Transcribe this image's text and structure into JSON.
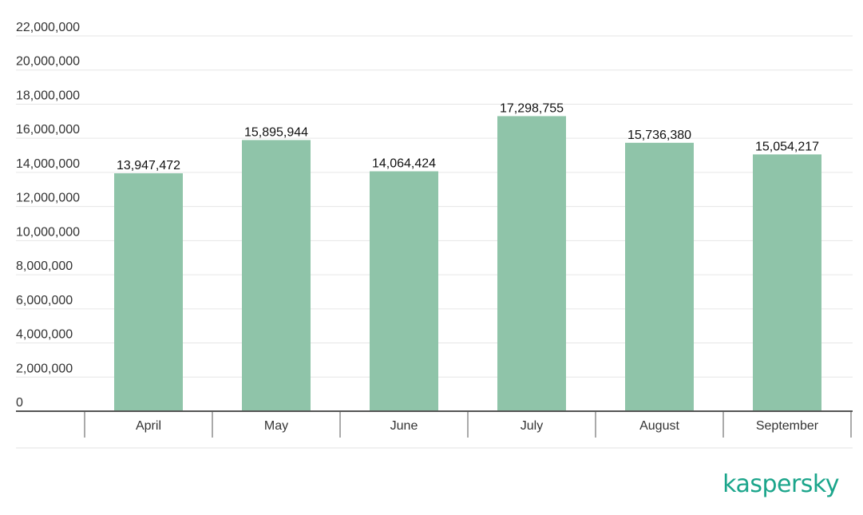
{
  "chart_data": {
    "type": "bar",
    "title": "",
    "xlabel": "",
    "ylabel": "",
    "categories": [
      "April",
      "May",
      "June",
      "July",
      "August",
      "September"
    ],
    "values": [
      13947472,
      15895944,
      14064424,
      17298755,
      15736380,
      15054217
    ],
    "value_labels": [
      "13,947,472",
      "15,895,944",
      "14,064,424",
      "17,298,755",
      "15,736,380",
      "15,054,217"
    ],
    "ylim": [
      0,
      22000000
    ],
    "yticks": [
      0,
      2000000,
      4000000,
      6000000,
      8000000,
      10000000,
      12000000,
      14000000,
      16000000,
      18000000,
      20000000,
      22000000
    ],
    "ytick_labels": [
      "0",
      "2,000,000",
      "4,000,000",
      "6,000,000",
      "8,000,000",
      "10,000,000",
      "12,000,000",
      "14,000,000",
      "16,000,000",
      "18,000,000",
      "20,000,000",
      "22,000,000"
    ],
    "grid": true,
    "legend": "none",
    "bar_color": "#8fc4a9"
  },
  "brand": {
    "logo_text": "kaspersky",
    "color": "#1ba58b"
  }
}
